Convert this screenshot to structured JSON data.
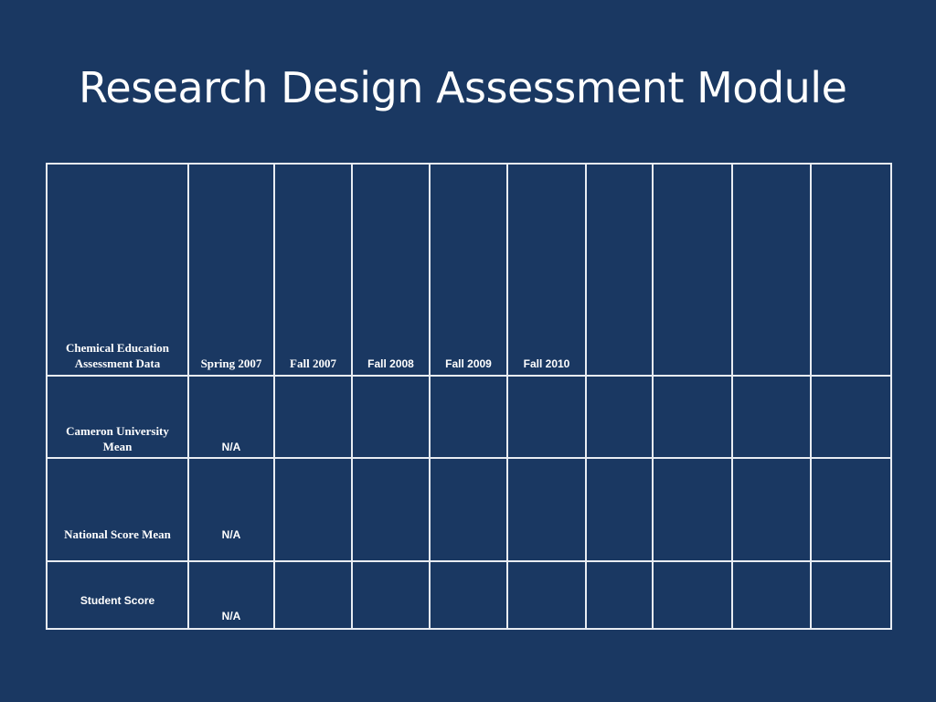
{
  "slide": {
    "title": "Research Design Assessment Module",
    "background_color": "#1a3862",
    "text_color": "#ffffff",
    "grid_line_color": "#e8ecf2"
  },
  "table": {
    "header": {
      "row_label": "Chemical Education Assessment Data",
      "columns": [
        "Spring 2007",
        "Fall 2007",
        "Fall 2008",
        "Fall 2009",
        "Fall 2010",
        "",
        "",
        "",
        "",
        ""
      ]
    },
    "rows": [
      {
        "label": "Cameron University Mean",
        "cells": [
          "N/A",
          "",
          "",
          "",
          "",
          "",
          "",
          "",
          "",
          ""
        ]
      },
      {
        "label": "National Score Mean",
        "cells": [
          "N/A",
          "",
          "",
          "",
          "",
          "",
          "",
          "",
          "",
          ""
        ]
      },
      {
        "label": "Student Score",
        "cells": [
          "N/A",
          "",
          "",
          "",
          "",
          "",
          "",
          "",
          "",
          ""
        ]
      }
    ]
  }
}
